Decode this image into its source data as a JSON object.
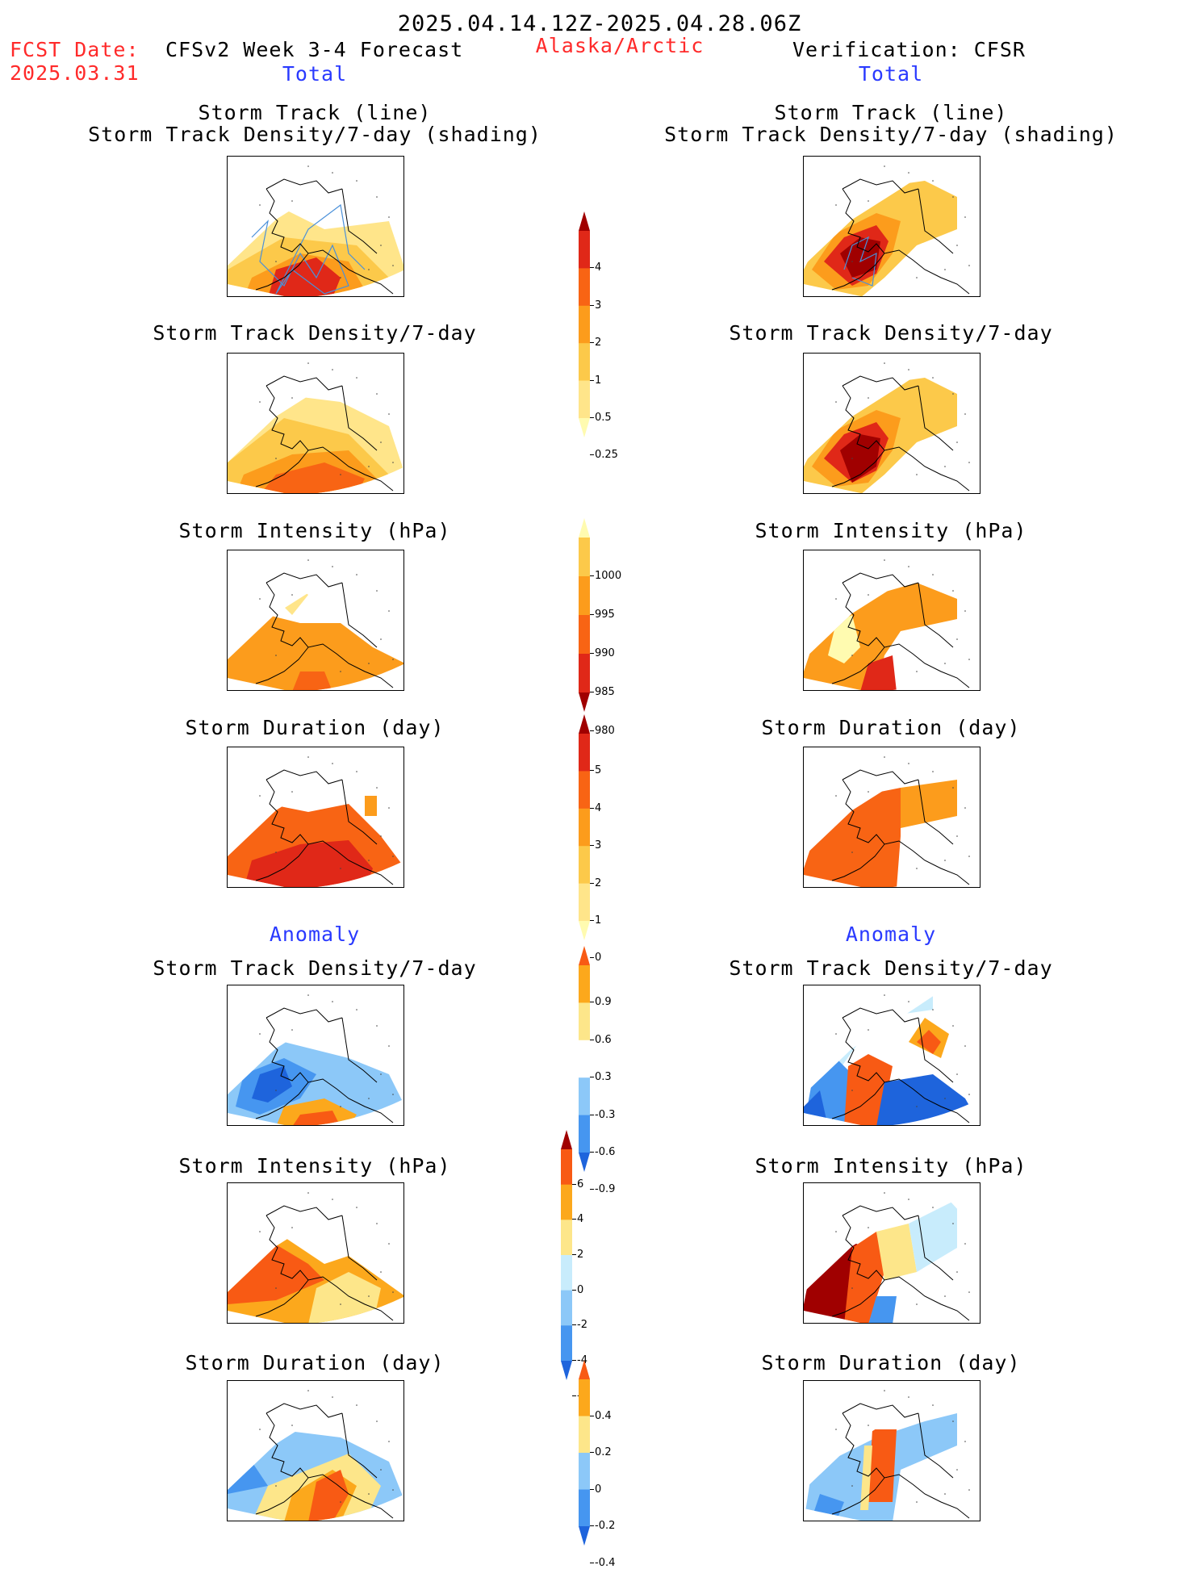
{
  "header": {
    "period": "2025.04.14.12Z-2025.04.28.06Z",
    "fcst_label": "FCST Date:",
    "fcst_date": "2025.03.31",
    "model": "CFSv2 Week 3-4 Forecast",
    "region": "Alaska/Arctic",
    "verification": "Verification: CFSR",
    "left_total": "Total",
    "right_total": "Total",
    "left_anomaly": "Anomaly",
    "right_anomaly": "Anomaly"
  },
  "panels": {
    "track_title_1": "Storm Track (line)",
    "track_title_2": "Storm Track Density/7-day (shading)",
    "density_title": "Storm Track Density/7-day",
    "intensity_title": "Storm Intensity (hPa)",
    "duration_title": "Storm Duration (day)"
  },
  "colorbars": {
    "density": [
      "4",
      "3",
      "2",
      "1",
      "0.5",
      "0.25"
    ],
    "intensity": [
      "1000",
      "995",
      "990",
      "985",
      "980"
    ],
    "duration": [
      "5",
      "4",
      "3",
      "2",
      "1",
      "0"
    ],
    "anom_density": [
      "0.9",
      "0.6",
      "0.3",
      "-0.3",
      "-0.6",
      "-0.9"
    ],
    "anom_intensity": [
      "6",
      "4",
      "2",
      "0",
      "-2",
      "-4",
      "-6"
    ],
    "anom_duration": [
      "0.4",
      "0.2",
      "0",
      "-0.2",
      "-0.4"
    ]
  },
  "colors": {
    "warm": [
      "#fffbb0",
      "#ffe58a",
      "#fcc94a",
      "#fc9c1c",
      "#f86414",
      "#e02818",
      "#a00000"
    ],
    "diverging": [
      "#1e64dc",
      "#4696f0",
      "#8cc8f8",
      "#c8ecfc",
      "#ffffff",
      "#fde68a",
      "#fca81c",
      "#f85a14",
      "#a00000"
    ]
  }
}
